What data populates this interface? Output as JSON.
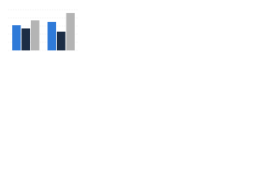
{
  "chart_data": {
    "type": "bar",
    "categories": [
      null,
      null
    ],
    "series": [
      {
        "color": "#2f7ad8",
        "values": [
          31,
          35
        ]
      },
      {
        "color": "#1c2d45",
        "values": [
          27,
          23
        ]
      },
      {
        "color": "#b4b4b4",
        "values": [
          37,
          46
        ]
      }
    ],
    "ylim": [
      0,
      50
    ],
    "yticks": [
      0,
      10,
      20,
      30,
      40,
      50
    ],
    "grid": true
  }
}
